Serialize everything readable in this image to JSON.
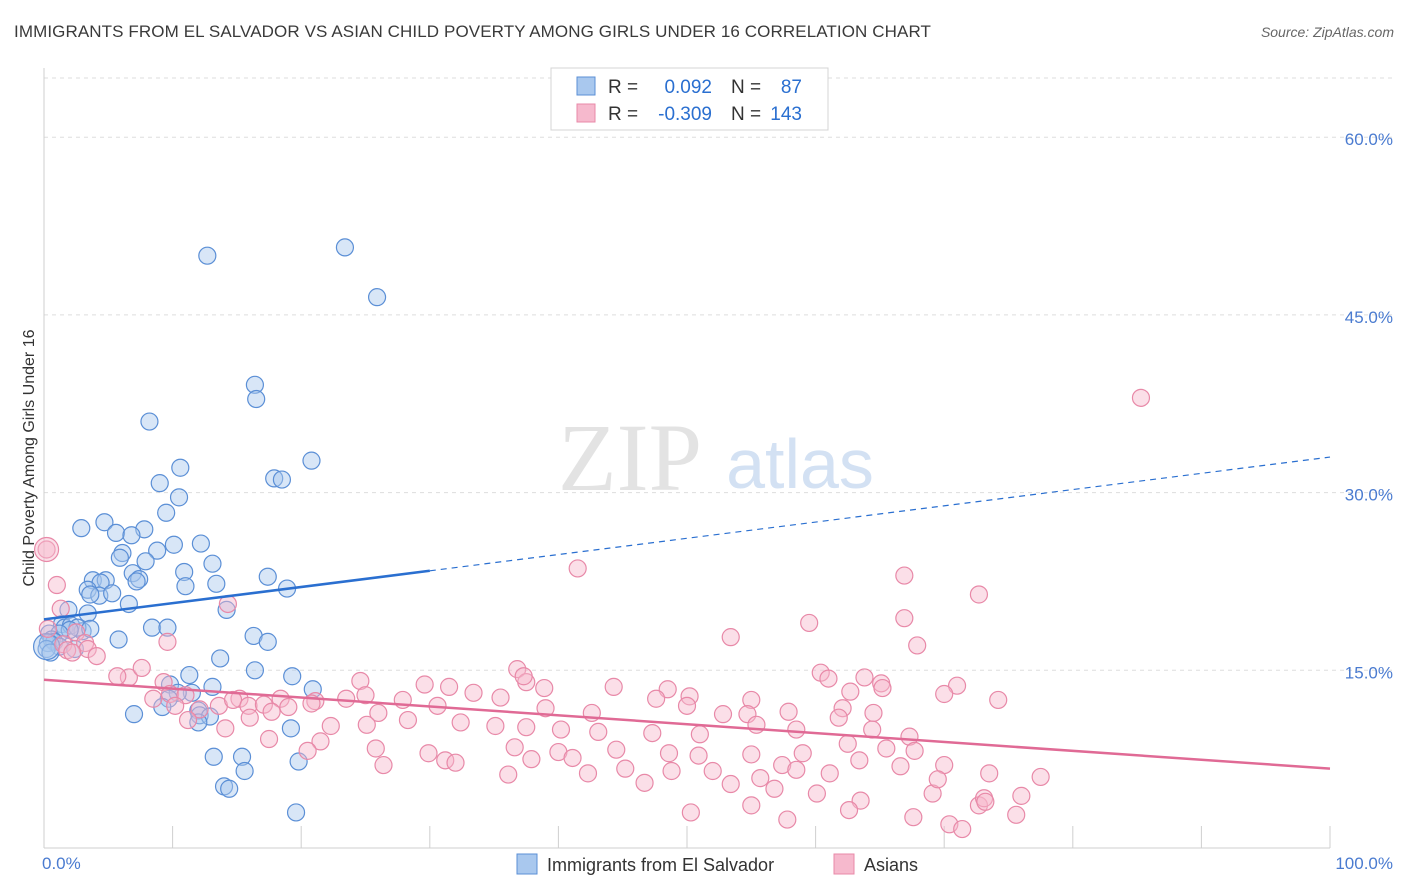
{
  "title": "IMMIGRANTS FROM EL SALVADOR VS ASIAN CHILD POVERTY AMONG GIRLS UNDER 16 CORRELATION CHART",
  "source": "Source: ZipAtlas.com",
  "watermark": {
    "zip": "ZIP",
    "atlas": "atlas"
  },
  "colors": {
    "blue_fill": "#a9c8ee",
    "blue_stroke": "#5b8fd6",
    "blue_line": "#2a6fd0",
    "pink_fill": "#f6b9cd",
    "pink_stroke": "#e889a8",
    "pink_line": "#e06a95",
    "tick_text": "#4a7bd0",
    "grid": "#dddddd"
  },
  "legend": {
    "rows": [
      {
        "r_label": "R =",
        "r_value": "0.092",
        "n_label": "N =",
        "n_value": "87"
      },
      {
        "r_label": "R =",
        "r_value": "-0.309",
        "n_label": "N =",
        "n_value": "143"
      }
    ]
  },
  "chart_data": {
    "type": "scatter",
    "title": "IMMIGRANTS FROM EL SALVADOR VS ASIAN CHILD POVERTY AMONG GIRLS UNDER 16 CORRELATION CHART",
    "xlabel": "",
    "ylabel": "Child Poverty Among Girls Under 16",
    "xlim": [
      0,
      100
    ],
    "ylim": [
      0,
      65
    ],
    "x_tick_labels": [
      "0.0%",
      "100.0%"
    ],
    "y_ticks": [
      15,
      30,
      45,
      60
    ],
    "y_tick_labels": [
      "15.0%",
      "30.0%",
      "45.0%",
      "60.0%"
    ],
    "grid": true,
    "legend_position": "top-center",
    "series": [
      {
        "name": "Immigrants from El Salvador",
        "r": 0.092,
        "n": 87,
        "trend": {
          "x0": 0,
          "y0": 19.3,
          "x1": 30,
          "y1": 23.4,
          "dashed_to_x": 100,
          "dashed_to_y": 33.0
        },
        "points": [
          [
            12.7,
            50.0
          ],
          [
            23.4,
            50.7
          ],
          [
            25.9,
            46.5
          ],
          [
            16.4,
            39.1
          ],
          [
            16.5,
            37.9
          ],
          [
            8.2,
            36.0
          ],
          [
            20.8,
            32.7
          ],
          [
            10.6,
            32.1
          ],
          [
            17.9,
            31.2
          ],
          [
            18.5,
            31.1
          ],
          [
            9.0,
            30.8
          ],
          [
            10.5,
            29.6
          ],
          [
            9.5,
            28.3
          ],
          [
            4.7,
            27.5
          ],
          [
            2.9,
            27.0
          ],
          [
            7.8,
            26.9
          ],
          [
            5.6,
            26.6
          ],
          [
            6.8,
            26.4
          ],
          [
            12.2,
            25.7
          ],
          [
            10.1,
            25.6
          ],
          [
            8.8,
            25.1
          ],
          [
            6.1,
            24.9
          ],
          [
            13.1,
            24.0
          ],
          [
            7.9,
            24.2
          ],
          [
            5.9,
            24.5
          ],
          [
            10.9,
            23.3
          ],
          [
            17.4,
            22.9
          ],
          [
            6.9,
            23.2
          ],
          [
            7.4,
            22.7
          ],
          [
            3.8,
            22.6
          ],
          [
            4.8,
            22.6
          ],
          [
            13.4,
            22.3
          ],
          [
            11.0,
            22.1
          ],
          [
            7.2,
            22.5
          ],
          [
            4.4,
            22.4
          ],
          [
            3.4,
            21.8
          ],
          [
            18.9,
            21.9
          ],
          [
            4.3,
            21.3
          ],
          [
            3.6,
            21.4
          ],
          [
            5.3,
            21.5
          ],
          [
            6.6,
            20.6
          ],
          [
            1.9,
            20.1
          ],
          [
            14.2,
            20.1
          ],
          [
            3.4,
            19.8
          ],
          [
            1.4,
            18.9
          ],
          [
            1.6,
            18.6
          ],
          [
            8.4,
            18.6
          ],
          [
            2.1,
            18.8
          ],
          [
            3.0,
            18.3
          ],
          [
            2.6,
            18.6
          ],
          [
            9.6,
            18.6
          ],
          [
            3.6,
            18.5
          ],
          [
            2.0,
            18.4
          ],
          [
            0.4,
            18.1
          ],
          [
            1.2,
            18.1
          ],
          [
            0.6,
            17.6
          ],
          [
            0.8,
            17.4
          ],
          [
            16.3,
            17.9
          ],
          [
            5.8,
            17.6
          ],
          [
            17.4,
            17.4
          ],
          [
            0.3,
            17.3
          ],
          [
            1.2,
            17.0
          ],
          [
            2.4,
            16.8
          ],
          [
            0.2,
            16.8
          ],
          [
            0.5,
            16.5
          ],
          [
            13.7,
            16.0
          ],
          [
            16.4,
            15.0
          ],
          [
            19.3,
            14.5
          ],
          [
            11.3,
            14.6
          ],
          [
            9.8,
            13.8
          ],
          [
            13.1,
            13.6
          ],
          [
            20.9,
            13.4
          ],
          [
            11.5,
            13.1
          ],
          [
            10.4,
            13.1
          ],
          [
            9.7,
            12.6
          ],
          [
            12.0,
            11.6
          ],
          [
            7.0,
            11.3
          ],
          [
            12.1,
            11.2
          ],
          [
            9.2,
            11.9
          ],
          [
            12.9,
            11.1
          ],
          [
            19.2,
            10.1
          ],
          [
            12.0,
            10.6
          ],
          [
            13.2,
            7.7
          ],
          [
            15.4,
            7.7
          ],
          [
            15.6,
            6.5
          ],
          [
            19.8,
            7.3
          ],
          [
            14.0,
            5.2
          ],
          [
            14.4,
            5.0
          ],
          [
            19.6,
            3.0
          ]
        ]
      },
      {
        "name": "Asians",
        "r": -0.309,
        "n": 143,
        "trend": {
          "x0": 0,
          "y0": 14.2,
          "x1": 100,
          "y1": 6.7
        },
        "points": [
          [
            85.3,
            38.0
          ],
          [
            0.2,
            25.2
          ],
          [
            41.5,
            23.6
          ],
          [
            66.9,
            23.0
          ],
          [
            72.7,
            21.4
          ],
          [
            1.0,
            22.2
          ],
          [
            14.3,
            20.6
          ],
          [
            1.3,
            20.2
          ],
          [
            0.3,
            18.5
          ],
          [
            59.5,
            19.0
          ],
          [
            66.9,
            19.4
          ],
          [
            53.4,
            17.8
          ],
          [
            2.5,
            18.2
          ],
          [
            9.6,
            17.4
          ],
          [
            3.2,
            17.3
          ],
          [
            1.5,
            17.2
          ],
          [
            67.9,
            17.1
          ],
          [
            1.8,
            16.7
          ],
          [
            3.4,
            16.8
          ],
          [
            2.2,
            16.5
          ],
          [
            4.1,
            16.2
          ],
          [
            36.8,
            15.1
          ],
          [
            60.4,
            14.8
          ],
          [
            6.6,
            14.4
          ],
          [
            5.7,
            14.5
          ],
          [
            7.6,
            15.2
          ],
          [
            63.8,
            14.4
          ],
          [
            9.3,
            14.0
          ],
          [
            61.0,
            14.3
          ],
          [
            37.5,
            14.0
          ],
          [
            24.6,
            14.1
          ],
          [
            71.0,
            13.7
          ],
          [
            37.3,
            14.5
          ],
          [
            29.6,
            13.8
          ],
          [
            31.5,
            13.6
          ],
          [
            38.9,
            13.5
          ],
          [
            44.3,
            13.6
          ],
          [
            65.1,
            13.9
          ],
          [
            65.2,
            13.5
          ],
          [
            48.5,
            13.4
          ],
          [
            62.7,
            13.2
          ],
          [
            9.8,
            13.0
          ],
          [
            8.5,
            12.6
          ],
          [
            11.0,
            12.9
          ],
          [
            13.6,
            12.0
          ],
          [
            15.2,
            12.6
          ],
          [
            14.7,
            12.5
          ],
          [
            18.4,
            12.6
          ],
          [
            21.1,
            12.4
          ],
          [
            23.5,
            12.6
          ],
          [
            25.0,
            12.9
          ],
          [
            27.9,
            12.5
          ],
          [
            33.4,
            13.1
          ],
          [
            35.5,
            12.7
          ],
          [
            47.6,
            12.6
          ],
          [
            50.2,
            12.8
          ],
          [
            55.0,
            12.5
          ],
          [
            70.0,
            13.0
          ],
          [
            74.2,
            12.5
          ],
          [
            10.2,
            12.0
          ],
          [
            12.1,
            11.7
          ],
          [
            15.9,
            12.0
          ],
          [
            17.1,
            12.1
          ],
          [
            19.0,
            11.9
          ],
          [
            20.8,
            12.2
          ],
          [
            26.0,
            11.4
          ],
          [
            30.6,
            12.0
          ],
          [
            39.0,
            11.8
          ],
          [
            42.6,
            11.4
          ],
          [
            50.0,
            12.0
          ],
          [
            52.8,
            11.3
          ],
          [
            54.7,
            11.3
          ],
          [
            57.9,
            11.5
          ],
          [
            62.1,
            11.8
          ],
          [
            64.5,
            11.4
          ],
          [
            11.2,
            10.8
          ],
          [
            14.1,
            10.1
          ],
          [
            16.0,
            11.0
          ],
          [
            17.7,
            11.5
          ],
          [
            22.3,
            10.3
          ],
          [
            25.1,
            10.4
          ],
          [
            28.3,
            10.8
          ],
          [
            32.4,
            10.6
          ],
          [
            35.1,
            10.3
          ],
          [
            37.5,
            10.2
          ],
          [
            40.2,
            10.0
          ],
          [
            43.1,
            9.8
          ],
          [
            47.3,
            9.7
          ],
          [
            51.0,
            9.6
          ],
          [
            55.4,
            10.4
          ],
          [
            58.5,
            10.0
          ],
          [
            61.8,
            11.0
          ],
          [
            64.4,
            10.0
          ],
          [
            67.3,
            9.4
          ],
          [
            17.5,
            9.2
          ],
          [
            21.5,
            9.0
          ],
          [
            25.8,
            8.4
          ],
          [
            29.9,
            8.0
          ],
          [
            31.2,
            7.4
          ],
          [
            36.6,
            8.5
          ],
          [
            40.0,
            8.1
          ],
          [
            44.5,
            8.3
          ],
          [
            48.6,
            8.0
          ],
          [
            50.9,
            7.8
          ],
          [
            55.0,
            7.9
          ],
          [
            57.4,
            7.0
          ],
          [
            59.0,
            8.0
          ],
          [
            62.5,
            8.8
          ],
          [
            65.5,
            8.4
          ],
          [
            67.7,
            8.2
          ],
          [
            20.5,
            8.2
          ],
          [
            26.4,
            7.0
          ],
          [
            32.0,
            7.2
          ],
          [
            37.9,
            7.5
          ],
          [
            41.1,
            7.6
          ],
          [
            45.2,
            6.7
          ],
          [
            48.8,
            6.5
          ],
          [
            52.0,
            6.5
          ],
          [
            55.7,
            5.9
          ],
          [
            58.5,
            6.6
          ],
          [
            61.1,
            6.3
          ],
          [
            63.4,
            7.4
          ],
          [
            66.6,
            6.9
          ],
          [
            70.0,
            7.0
          ],
          [
            73.5,
            6.3
          ],
          [
            77.5,
            6.0
          ],
          [
            36.1,
            6.2
          ],
          [
            42.3,
            6.3
          ],
          [
            46.7,
            5.5
          ],
          [
            53.4,
            5.4
          ],
          [
            56.8,
            5.0
          ],
          [
            60.1,
            4.6
          ],
          [
            63.5,
            4.0
          ],
          [
            69.1,
            4.6
          ],
          [
            72.7,
            3.6
          ],
          [
            75.6,
            2.8
          ],
          [
            50.3,
            3.0
          ],
          [
            55.0,
            3.6
          ],
          [
            57.8,
            2.4
          ],
          [
            62.6,
            3.2
          ],
          [
            67.6,
            2.6
          ],
          [
            70.4,
            2.0
          ],
          [
            71.4,
            1.6
          ],
          [
            73.1,
            4.2
          ],
          [
            73.2,
            3.9
          ],
          [
            69.5,
            5.8
          ],
          [
            76.0,
            4.4
          ]
        ]
      }
    ]
  }
}
